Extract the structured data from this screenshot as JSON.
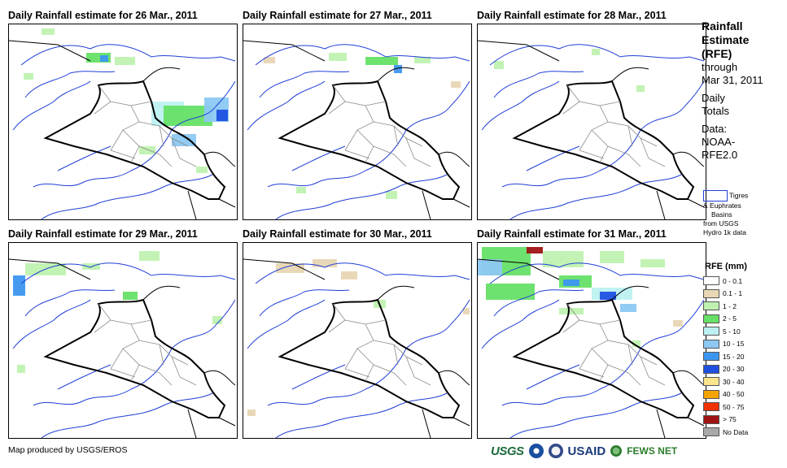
{
  "panels": [
    {
      "title": "Daily Rainfall estimate for 26 Mar., 2011"
    },
    {
      "title": "Daily Rainfall estimate for 27 Mar., 2011"
    },
    {
      "title": "Daily Rainfall estimate for 28 Mar., 2011"
    },
    {
      "title": "Daily Rainfall estimate for 29 Mar., 2011"
    },
    {
      "title": "Daily Rainfall estimate for 30 Mar., 2011"
    },
    {
      "title": "Daily Rainfall estimate for 31 Mar., 2011"
    }
  ],
  "legend": {
    "title_lines": [
      "Rainfall",
      "Estimate",
      "(RFE)"
    ],
    "through_lines": [
      "through",
      "Mar 31, 2011"
    ],
    "daily_lines": [
      "Daily",
      "Totals"
    ],
    "data_lines": [
      "Data:",
      "NOAA-",
      "RFE2.0"
    ],
    "basin_label": "Tigres",
    "basin_lines": [
      "& Euphrates",
      "Basins",
      "from USGS",
      "Hydro 1k data"
    ],
    "basin_color": "#1f3fd6",
    "rfe_title": "RFE (mm)",
    "classes": [
      {
        "label": "0 - 0.1",
        "color": "#ffffff"
      },
      {
        "label": "0.1 - 1",
        "color": "#e8d6b4"
      },
      {
        "label": "1 - 2",
        "color": "#bff2b0"
      },
      {
        "label": "2 - 5",
        "color": "#66e066"
      },
      {
        "label": "5 - 10",
        "color": "#bdf1f1"
      },
      {
        "label": "10 - 15",
        "color": "#8cc8f2"
      },
      {
        "label": "15 - 20",
        "color": "#3c96f0"
      },
      {
        "label": "20 - 30",
        "color": "#1f50e0"
      },
      {
        "label": "30 - 40",
        "color": "#fae48c"
      },
      {
        "label": "40 - 50",
        "color": "#f5a300"
      },
      {
        "label": "50 - 75",
        "color": "#f03200"
      },
      {
        "label": "> 75",
        "color": "#a01414"
      },
      {
        "label": "No Data",
        "color": "#a8a8a8"
      }
    ]
  },
  "footer": {
    "credit": "Map produced by USGS/EROS"
  },
  "logos": {
    "usgs": "USGS",
    "usaid": "USAID",
    "fews": "FEWS NET"
  }
}
